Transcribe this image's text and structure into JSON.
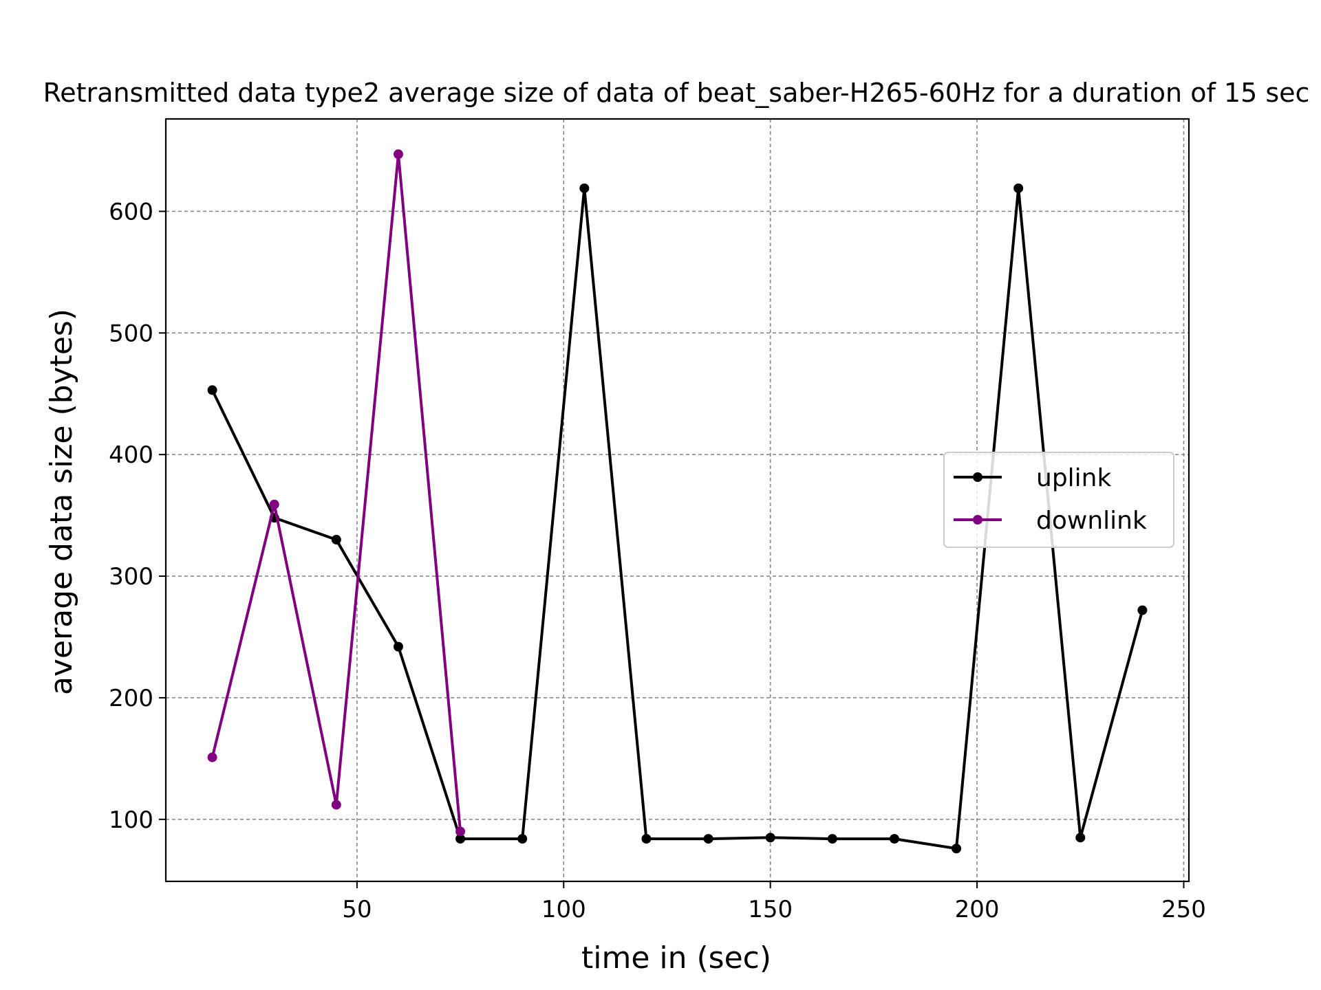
{
  "chart_data": {
    "type": "line",
    "title": "Retransmitted data type2 average size of data of beat_saber-H265-60Hz for a duration of 15 sec",
    "xlabel": "time in (sec)",
    "ylabel": "average data size (bytes)",
    "xlim": [
      3.75,
      251.25
    ],
    "ylim": [
      49,
      676
    ],
    "xticks": [
      50,
      100,
      150,
      200,
      250
    ],
    "yticks": [
      100,
      200,
      300,
      400,
      500,
      600
    ],
    "grid": true,
    "legend_position": "center-right",
    "series": [
      {
        "name": "uplink",
        "color": "#000000",
        "x": [
          15,
          30,
          45,
          60,
          75,
          90,
          105,
          120,
          135,
          150,
          165,
          180,
          195,
          210,
          225,
          240
        ],
        "y": [
          453,
          348,
          330,
          242,
          84,
          84,
          619,
          84,
          84,
          85,
          84,
          84,
          76,
          619,
          85,
          272
        ]
      },
      {
        "name": "downlink",
        "color": "#800080",
        "x": [
          15,
          30,
          45,
          60,
          75
        ],
        "y": [
          151,
          359,
          112,
          647,
          90
        ]
      }
    ]
  }
}
